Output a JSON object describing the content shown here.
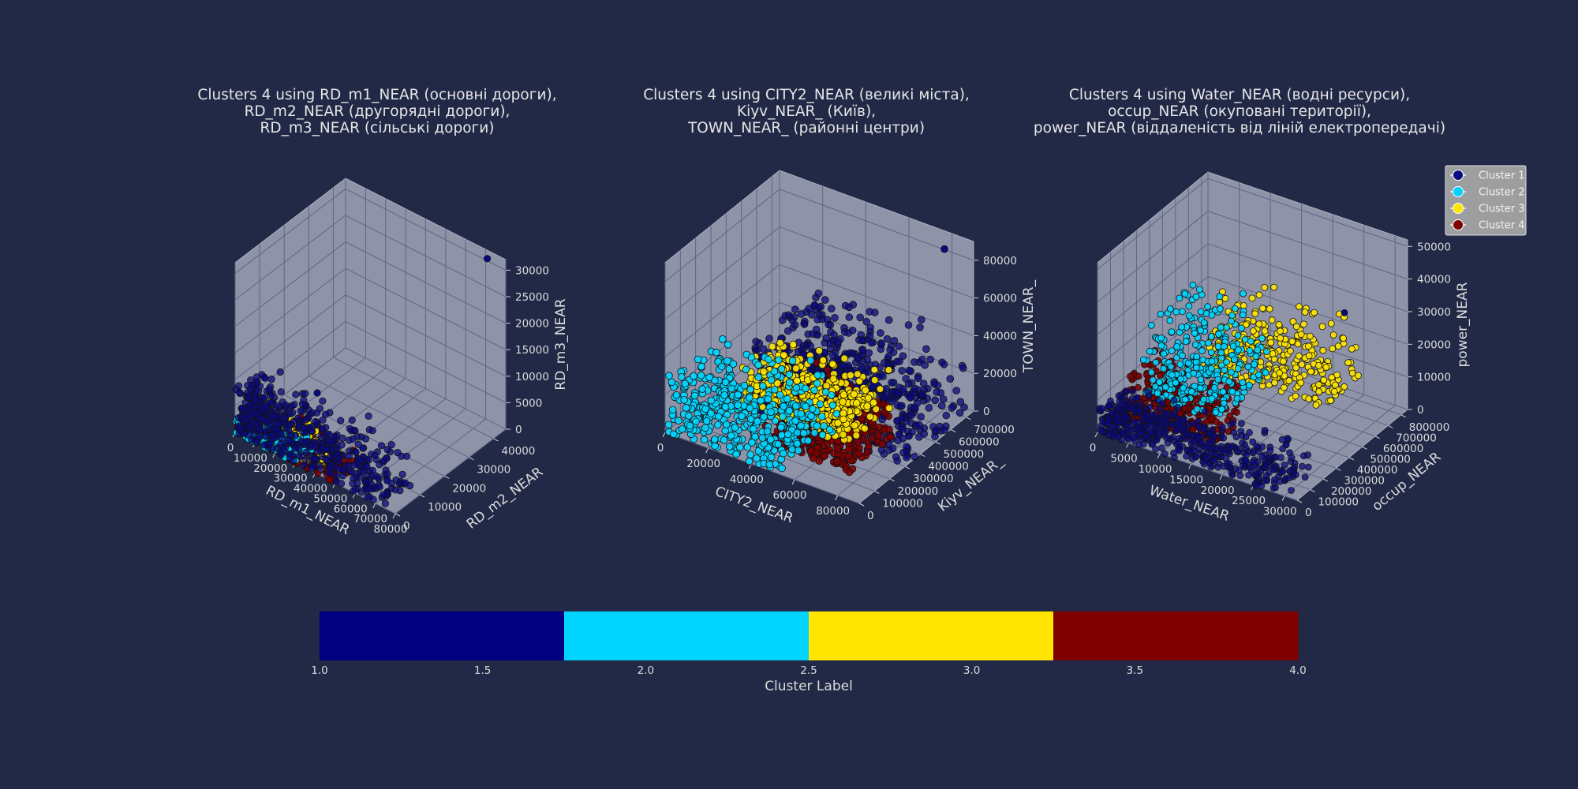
{
  "chart_data": [
    {
      "type": "scatter3d",
      "title_lines": [
        "Clusters 4 using RD_m1_NEAR (основні дороги),",
        "RD_m2_NEAR (другорядні дороги),",
        "RD_m3_NEAR (сільські дороги)"
      ],
      "xlabel": "RD_m1_NEAR",
      "ylabel": "RD_m2_NEAR",
      "zlabel": "RD_m3_NEAR",
      "xlim": [
        0,
        80000
      ],
      "ylim": [
        0,
        45000
      ],
      "zlim": [
        0,
        32000
      ],
      "xticks": [
        "0",
        "10000",
        "20000",
        "30000",
        "40000",
        "50000",
        "60000",
        "70000",
        "80000"
      ],
      "yticks": [
        "0",
        "10000",
        "20000",
        "30000",
        "40000"
      ],
      "zticks": [
        "0",
        "5000",
        "10000",
        "15000",
        "20000",
        "25000",
        "30000"
      ],
      "clusters": [
        {
          "label": 1,
          "x_range": [
            0,
            75000
          ],
          "y_range": [
            0,
            12000
          ],
          "z_range": [
            0,
            9000
          ],
          "outliers": [
            [
              72000,
              44000,
              31000
            ],
            [
              30000,
              9000,
              10000
            ]
          ]
        },
        {
          "label": 2,
          "x_range": [
            0,
            30000
          ],
          "y_range": [
            0,
            8000
          ],
          "z_range": [
            0,
            3000
          ]
        },
        {
          "label": 3,
          "x_range": [
            5000,
            40000
          ],
          "y_range": [
            2000,
            10000
          ],
          "z_range": [
            0,
            4000
          ]
        },
        {
          "label": 4,
          "x_range": [
            10000,
            50000
          ],
          "y_range": [
            0,
            9000
          ],
          "z_range": [
            0,
            4000
          ]
        }
      ]
    },
    {
      "type": "scatter3d",
      "title_lines": [
        "Clusters 4 using CITY2_NEAR (великі міста),",
        "Kiyv_NEAR_ (Київ),",
        "TOWN_NEAR_ (районні центри)"
      ],
      "xlabel": "CITY2_NEAR",
      "ylabel": "Kiyv_NEAR_",
      "zlabel": "TOWN_NEAR_",
      "xlim": [
        0,
        90000
      ],
      "ylim": [
        0,
        750000
      ],
      "zlim": [
        0,
        90000
      ],
      "xticks": [
        "0",
        "20000",
        "40000",
        "60000",
        "80000"
      ],
      "yticks": [
        "0",
        "100000",
        "200000",
        "300000",
        "400000",
        "500000",
        "600000",
        "700000"
      ],
      "zticks": [
        "0",
        "20000",
        "40000",
        "60000",
        "80000"
      ],
      "clusters": [
        {
          "label": 1,
          "x_range": [
            20000,
            90000
          ],
          "y_range": [
            300000,
            750000
          ],
          "z_range": [
            0,
            40000
          ],
          "outliers": [
            [
              80000,
              700000,
              85000
            ]
          ]
        },
        {
          "label": 2,
          "x_range": [
            0,
            55000
          ],
          "y_range": [
            0,
            400000
          ],
          "z_range": [
            0,
            30000
          ]
        },
        {
          "label": 3,
          "x_range": [
            20000,
            70000
          ],
          "y_range": [
            200000,
            500000
          ],
          "z_range": [
            10000,
            30000
          ]
        },
        {
          "label": 4,
          "x_range": [
            35000,
            75000
          ],
          "y_range": [
            150000,
            450000
          ],
          "z_range": [
            0,
            25000
          ]
        }
      ]
    },
    {
      "type": "scatter3d",
      "title_lines": [
        "Clusters 4 using Water_NEAR (водні ресурси),",
        "occup_NEAR (окуповані території),",
        "power_NEAR (віддаленість від ліній електропередачі)"
      ],
      "xlabel": "Water_NEAR",
      "ylabel": "occup_NEAR",
      "zlabel": "power_NEAR",
      "xlim": [
        0,
        32000
      ],
      "ylim": [
        0,
        850000
      ],
      "zlim": [
        0,
        52000
      ],
      "xticks": [
        "0",
        "5000",
        "10000",
        "15000",
        "20000",
        "25000",
        "30000"
      ],
      "yticks": [
        "0",
        "100000",
        "200000",
        "300000",
        "400000",
        "500000",
        "600000",
        "700000",
        "800000"
      ],
      "zticks": [
        "0",
        "10000",
        "20000",
        "30000",
        "40000",
        "50000"
      ],
      "clusters": [
        {
          "label": 1,
          "x_range": [
            0,
            30000
          ],
          "y_range": [
            0,
            250000
          ],
          "z_range": [
            0,
            8000
          ],
          "outliers": [
            [
              25000,
              700000,
              30000
            ]
          ]
        },
        {
          "label": 2,
          "x_range": [
            0,
            12000
          ],
          "y_range": [
            350000,
            800000
          ],
          "z_range": [
            0,
            25000
          ]
        },
        {
          "label": 3,
          "x_range": [
            5000,
            25000
          ],
          "y_range": [
            550000,
            850000
          ],
          "z_range": [
            5000,
            25000
          ]
        },
        {
          "label": 4,
          "x_range": [
            0,
            15000
          ],
          "y_range": [
            150000,
            450000
          ],
          "z_range": [
            0,
            12000
          ]
        }
      ]
    }
  ],
  "legend": {
    "placement": "right",
    "entries": [
      {
        "label": "Cluster 1",
        "color": "#0a0a80"
      },
      {
        "label": "Cluster 2",
        "color": "#00d5ff"
      },
      {
        "label": "Cluster 3",
        "color": "#ffe500"
      },
      {
        "label": "Cluster 4",
        "color": "#7f0000"
      }
    ]
  },
  "colorbar": {
    "label": "Cluster Label",
    "range": [
      1.0,
      4.0
    ],
    "ticks": [
      "1.0",
      "1.5",
      "2.0",
      "2.5",
      "3.0",
      "3.5",
      "4.0"
    ],
    "colors": [
      "#000080",
      "#00d5ff",
      "#ffe500",
      "#7f0000"
    ]
  },
  "colors": {
    "background": "#212946",
    "pane": "#8e93a8",
    "grid": "#5e6586"
  }
}
